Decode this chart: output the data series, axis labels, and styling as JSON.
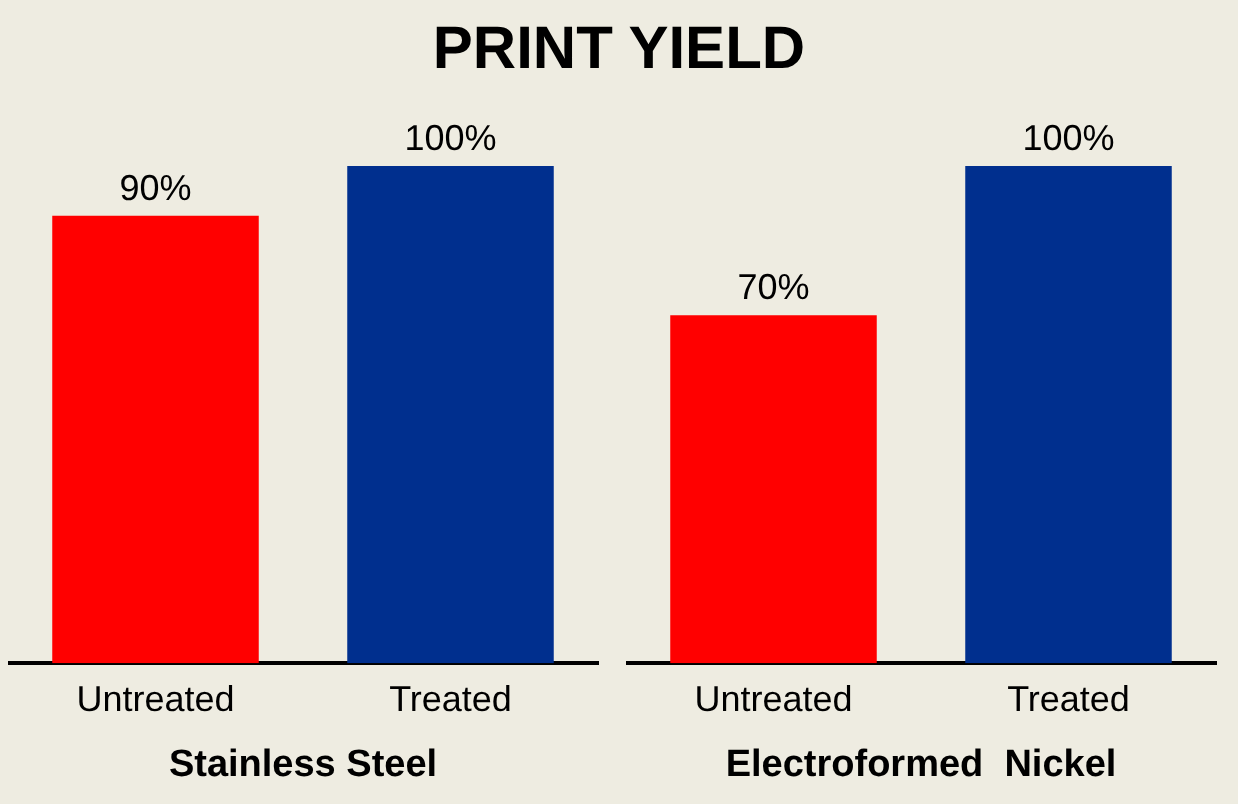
{
  "chart_data": [
    {
      "type": "bar",
      "title": "PRINT YIELD",
      "xlabel": "Stainless Steel",
      "categories": [
        "Untreated",
        "Treated"
      ],
      "values": [
        90,
        100
      ],
      "colors": [
        "#ff0000",
        "#002f8e"
      ],
      "value_labels": [
        "90%",
        "100%"
      ],
      "ylim": [
        0,
        100
      ],
      "grid": false,
      "legend": false
    },
    {
      "type": "bar",
      "xlabel": "Electroformed  Nickel",
      "categories": [
        "Untreated",
        "Treated"
      ],
      "values": [
        70,
        100
      ],
      "colors": [
        "#ff0000",
        "#002f8e"
      ],
      "value_labels": [
        "70%",
        "100%"
      ],
      "ylim": [
        0,
        100
      ],
      "grid": false,
      "legend": false
    }
  ]
}
